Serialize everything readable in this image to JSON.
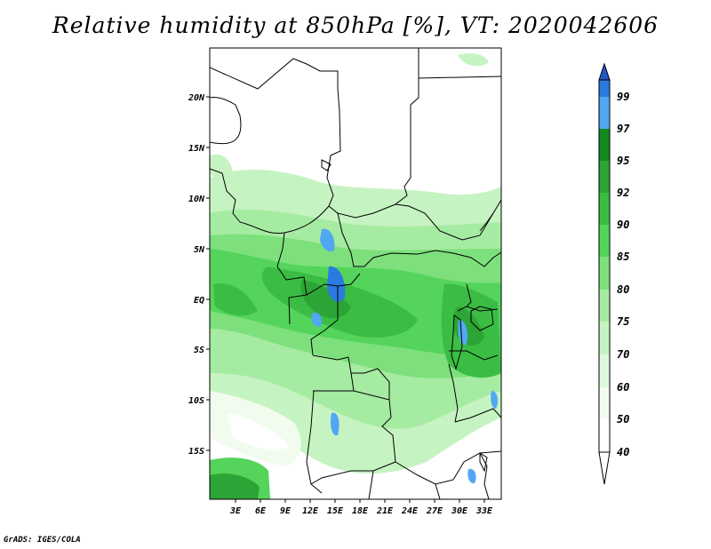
{
  "title": "Relative humidity at 850hPa [%], VT: 2020042606",
  "credit": "GrADS: IGES/COLA",
  "map": {
    "lat_labels": [
      "20N",
      "15N",
      "10N",
      "5N",
      "EQ",
      "5S",
      "10S",
      "15S"
    ],
    "lon_labels": [
      "3E",
      "6E",
      "9E",
      "12E",
      "15E",
      "18E",
      "21E",
      "24E",
      "27E",
      "30E",
      "33E"
    ],
    "colorbar": {
      "levels": [
        "99",
        "97",
        "95",
        "92",
        "90",
        "85",
        "80",
        "75",
        "70",
        "60",
        "50",
        "40"
      ],
      "colors": [
        "#1f57c9",
        "#2b7ae0",
        "#52a7f2",
        "#13881f",
        "#2ca436",
        "#3bbd44",
        "#55d45b",
        "#7de07c",
        "#a6eba2",
        "#c6f3c2",
        "#def8db",
        "#f1fcef",
        "#ffffff"
      ]
    }
  }
}
